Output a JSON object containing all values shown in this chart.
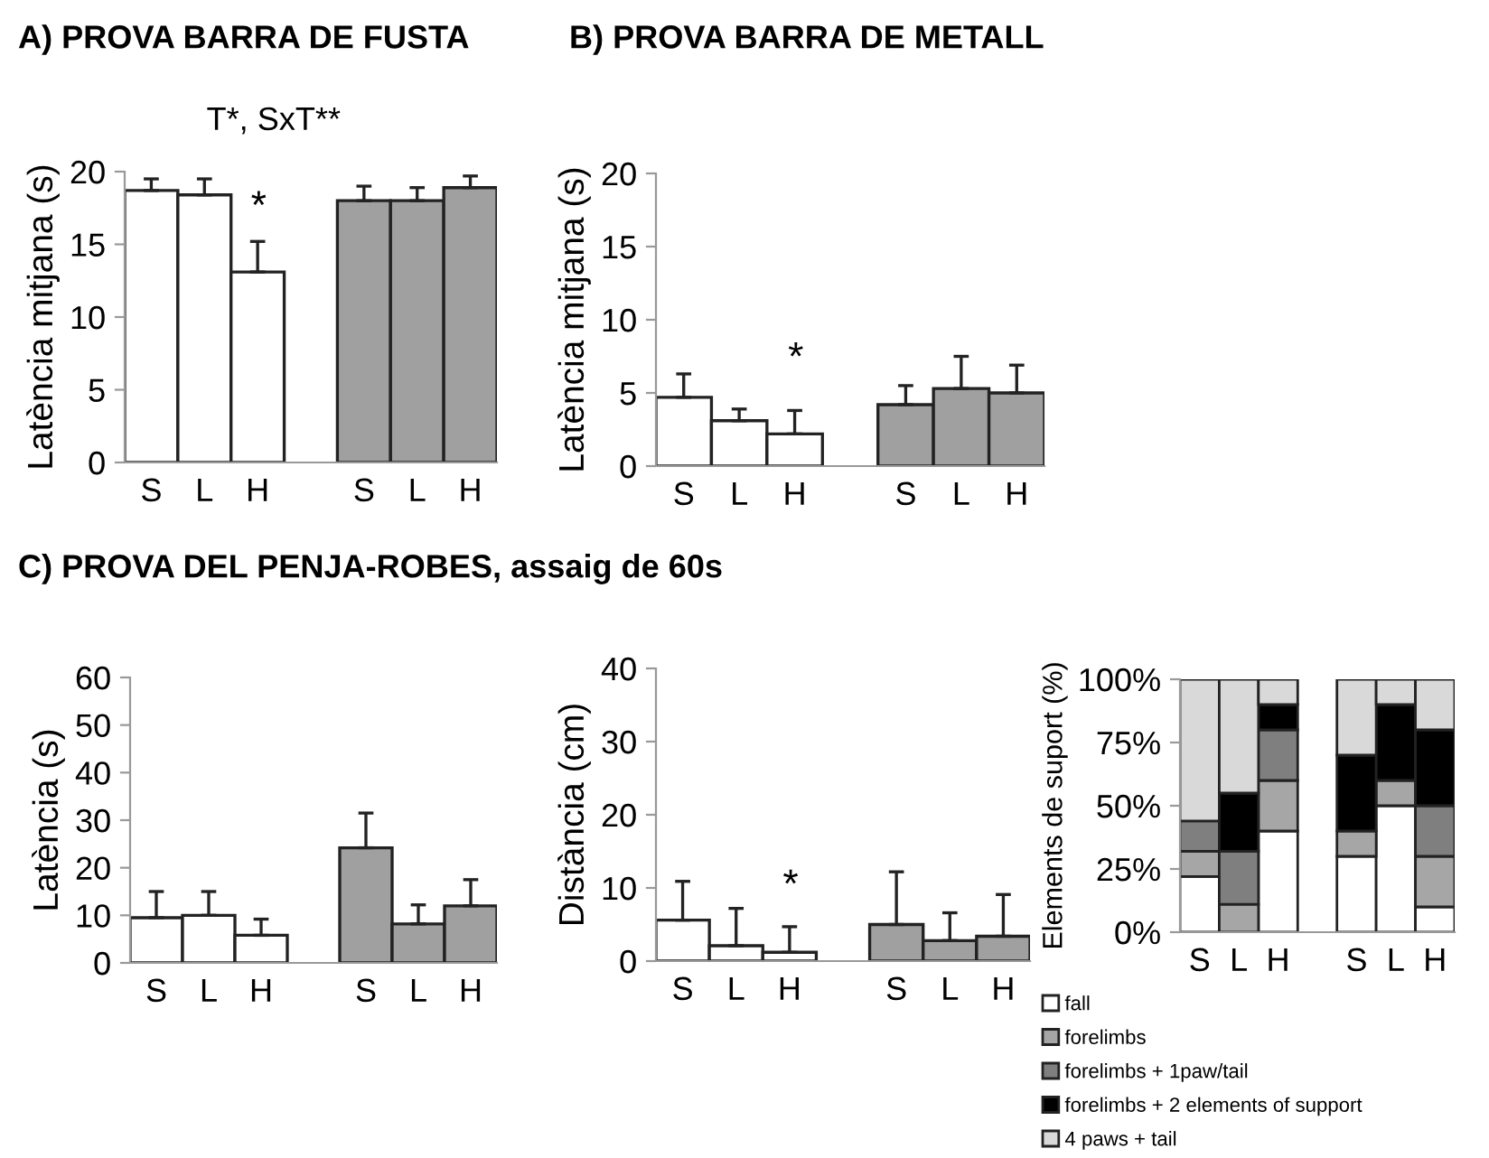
{
  "chart_data": [
    {
      "type": "bar",
      "title": "A) PROVA BARRA DE FUSTA",
      "ylabel": "Latència mitjana (s)",
      "categories": [
        "S",
        "L",
        "H",
        null,
        "S",
        "L",
        "H"
      ],
      "values": [
        18.7,
        18.4,
        13.1,
        null,
        18.0,
        18.0,
        18.9
      ],
      "colors": [
        "#ffffff",
        "#ffffff",
        "#ffffff",
        null,
        "#a0a0a0",
        "#a0a0a0",
        "#a0a0a0"
      ],
      "errors": [
        [
          18.7,
          19.5
        ],
        [
          18.4,
          19.5
        ],
        [
          13.1,
          15.2
        ],
        null,
        [
          18.0,
          19.0
        ],
        [
          18.0,
          18.9
        ],
        [
          18.9,
          19.7
        ]
      ],
      "ylim": [
        0,
        20
      ],
      "yticks": [
        0,
        5,
        10,
        15,
        20
      ],
      "grid": false,
      "legend": false,
      "annotations": [
        "T*, SxT**",
        "*"
      ]
    },
    {
      "type": "bar",
      "title": "B) PROVA BARRA DE METALL",
      "ylabel": "Latència mitjana (s)",
      "categories": [
        "S",
        "L",
        "H",
        null,
        "S",
        "L",
        "H"
      ],
      "values": [
        4.7,
        3.1,
        2.2,
        null,
        4.2,
        5.3,
        5.0
      ],
      "colors": [
        "#ffffff",
        "#ffffff",
        "#ffffff",
        null,
        "#a0a0a0",
        "#a0a0a0",
        "#a0a0a0"
      ],
      "errors": [
        [
          4.7,
          6.3
        ],
        [
          3.1,
          3.9
        ],
        [
          2.2,
          3.8
        ],
        null,
        [
          4.2,
          5.5
        ],
        [
          5.3,
          7.5
        ],
        [
          5.0,
          6.9
        ]
      ],
      "ylim": [
        0,
        20
      ],
      "yticks": [
        0,
        5,
        10,
        15,
        20
      ],
      "grid": false,
      "legend": false,
      "annotations": [
        "*"
      ]
    },
    {
      "type": "bar",
      "title": "C) PROVA DEL PENJA-ROBES, assaig de 60s",
      "ylabel": "Latència (s)",
      "categories": [
        "S",
        "L",
        "H",
        null,
        "S",
        "L",
        "H"
      ],
      "values": [
        9.5,
        10.0,
        5.8,
        null,
        24.2,
        8.2,
        12.0
      ],
      "colors": [
        "#ffffff",
        "#ffffff",
        "#ffffff",
        null,
        "#a0a0a0",
        "#a0a0a0",
        "#a0a0a0"
      ],
      "errors": [
        [
          9.5,
          15.0
        ],
        [
          10.0,
          15.0
        ],
        [
          5.8,
          9.2
        ],
        null,
        [
          24.2,
          31.5
        ],
        [
          8.2,
          12.2
        ],
        [
          12.0,
          17.5
        ]
      ],
      "ylim": [
        0,
        60
      ],
      "yticks": [
        0,
        10,
        20,
        30,
        40,
        50,
        60
      ],
      "grid": false,
      "legend": false
    },
    {
      "type": "bar",
      "ylabel": "Distància (cm)",
      "categories": [
        "S",
        "L",
        "H",
        null,
        "S",
        "L",
        "H"
      ],
      "values": [
        5.6,
        2.1,
        1.2,
        null,
        5.0,
        2.8,
        3.4
      ],
      "colors": [
        "#ffffff",
        "#ffffff",
        "#ffffff",
        null,
        "#a0a0a0",
        "#a0a0a0",
        "#a0a0a0"
      ],
      "errors": [
        [
          5.6,
          10.9
        ],
        [
          2.1,
          7.2
        ],
        [
          1.2,
          4.7
        ],
        null,
        [
          5.0,
          12.2
        ],
        [
          2.8,
          6.6
        ],
        [
          3.4,
          9.1
        ]
      ],
      "ylim": [
        0,
        40
      ],
      "yticks": [
        0,
        10,
        20,
        30,
        40
      ],
      "grid": false,
      "legend": false,
      "annotations": [
        "*"
      ]
    },
    {
      "type": "bar",
      "stacked": true,
      "ylabel": "Elements de suport (%)",
      "categories": [
        "S",
        "L",
        "H",
        null,
        "S",
        "L",
        "H"
      ],
      "series": [
        {
          "name": "fall",
          "color": "#ffffff",
          "values": [
            22,
            0,
            40,
            null,
            30,
            50,
            10
          ]
        },
        {
          "name": "forelimbs",
          "color": "#a6a6a6",
          "values": [
            10,
            11,
            20,
            null,
            10,
            10,
            20
          ]
        },
        {
          "name": "forelimbs + 1paw/tail",
          "color": "#7f7f7f",
          "values": [
            12,
            21,
            20,
            null,
            0,
            0,
            20
          ]
        },
        {
          "name": "forelimbs + 2 elements of support",
          "color": "#000000",
          "values": [
            0,
            23,
            10,
            null,
            30,
            30,
            30
          ]
        },
        {
          "name": "4 paws + tail",
          "color": "#d9d9d9",
          "values": [
            56,
            45,
            10,
            null,
            30,
            10,
            20
          ]
        }
      ],
      "ylim": [
        0,
        100
      ],
      "yticks": [
        {
          "value": 0,
          "label": "0%"
        },
        {
          "value": 25,
          "label": "25%"
        },
        {
          "value": 50,
          "label": "50%"
        },
        {
          "value": 75,
          "label": "75%"
        },
        {
          "value": 100,
          "label": "100%"
        }
      ],
      "grid": false,
      "legend": "bottom"
    }
  ]
}
